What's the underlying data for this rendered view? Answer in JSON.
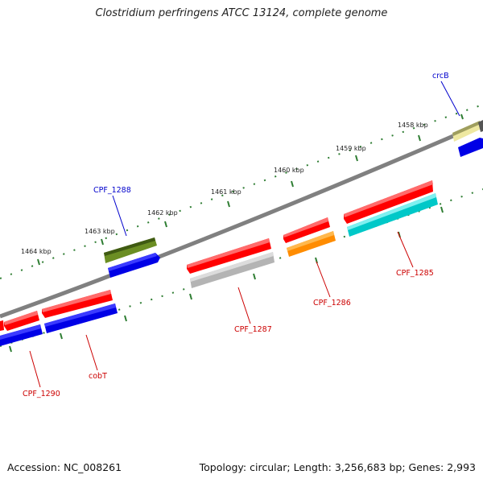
{
  "title": "Clostridium perfringens ATCC 13124, complete genome",
  "footer": {
    "accession": "Accession: NC_008261",
    "summary": "Topology: circular; Length: 3,256,683 bp; Genes: 2,993"
  },
  "kbp_labels": [
    "1458 kbp",
    "1459 kbp",
    "1460 kbp",
    "1461 kbp",
    "1462 kbp",
    "1463 kbp",
    "1464 kbp"
  ],
  "colors": {
    "backbone": "#808080",
    "tick": "#2e7d32",
    "label_forward": "#0000cc",
    "label_reverse": "#cc0000"
  },
  "genes": [
    {
      "name": "crcB",
      "strand": "forward",
      "color": "#eee8a0"
    },
    {
      "name": "CPF_1288",
      "strand": "forward",
      "color": "#6b8e23"
    },
    {
      "name": "CPF_1285",
      "strand": "reverse",
      "color": "#ff0000"
    },
    {
      "name": "CPF_1286",
      "strand": "reverse",
      "color": "#ff0000"
    },
    {
      "name": "CPF_1287",
      "strand": "reverse",
      "color": "#ff0000"
    },
    {
      "name": "cobT",
      "strand": "reverse",
      "color": "#ff0000"
    },
    {
      "name": "CPF_1290",
      "strand": "reverse",
      "color": "#ff0000"
    }
  ]
}
